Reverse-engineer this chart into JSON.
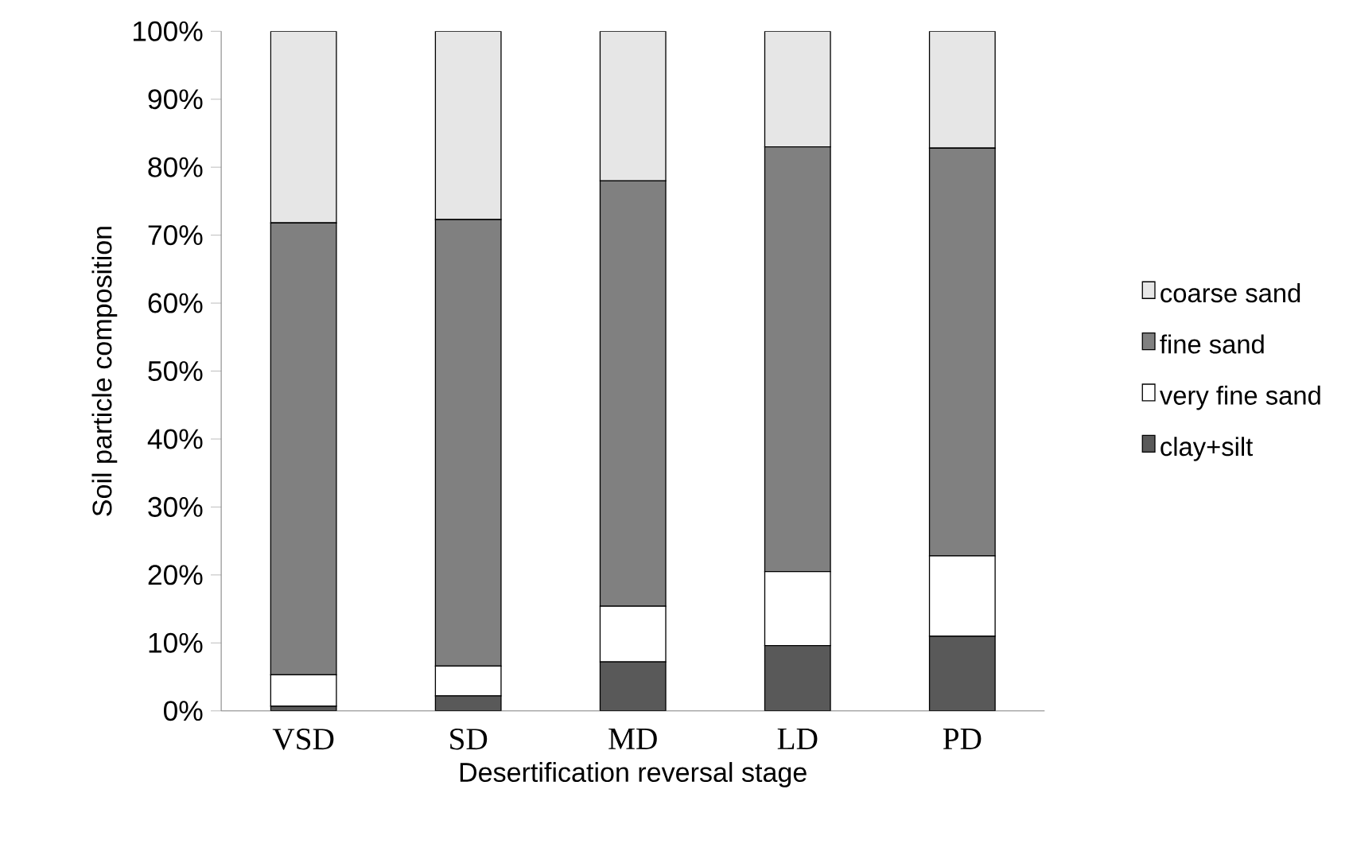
{
  "chart_data": {
    "type": "bar",
    "stacked": true,
    "xlabel": "Desertification reversal stage",
    "ylabel": "Soil particle composition",
    "categories": [
      "VSD",
      "SD",
      "MD",
      "LD",
      "PD"
    ],
    "series": [
      {
        "name": "clay+silt",
        "color": "#595959",
        "values": [
          0.7,
          2.2,
          7.2,
          9.6,
          11.0
        ]
      },
      {
        "name": "very fine sand",
        "color": "#ffffff",
        "values": [
          4.6,
          4.4,
          8.2,
          10.9,
          11.8
        ]
      },
      {
        "name": "fine sand",
        "color": "#808080",
        "values": [
          66.5,
          65.7,
          62.6,
          62.5,
          60.0
        ]
      },
      {
        "name": "coarse sand",
        "color": "#e6e6e6",
        "values": [
          28.2,
          27.7,
          22.0,
          17.0,
          17.2
        ]
      }
    ],
    "ylim": [
      0,
      100
    ],
    "yticks": [
      {
        "value": 0,
        "label": "0%"
      },
      {
        "value": 10,
        "label": "10%"
      },
      {
        "value": 20,
        "label": "20%"
      },
      {
        "value": 30,
        "label": "30%"
      },
      {
        "value": 40,
        "label": "40%"
      },
      {
        "value": 50,
        "label": "50%"
      },
      {
        "value": 60,
        "label": "60%"
      },
      {
        "value": 70,
        "label": "70%"
      },
      {
        "value": 80,
        "label": "80%"
      },
      {
        "value": 90,
        "label": "90%"
      },
      {
        "value": 100,
        "label": "100%"
      }
    ],
    "grid": false,
    "legend": "right"
  }
}
